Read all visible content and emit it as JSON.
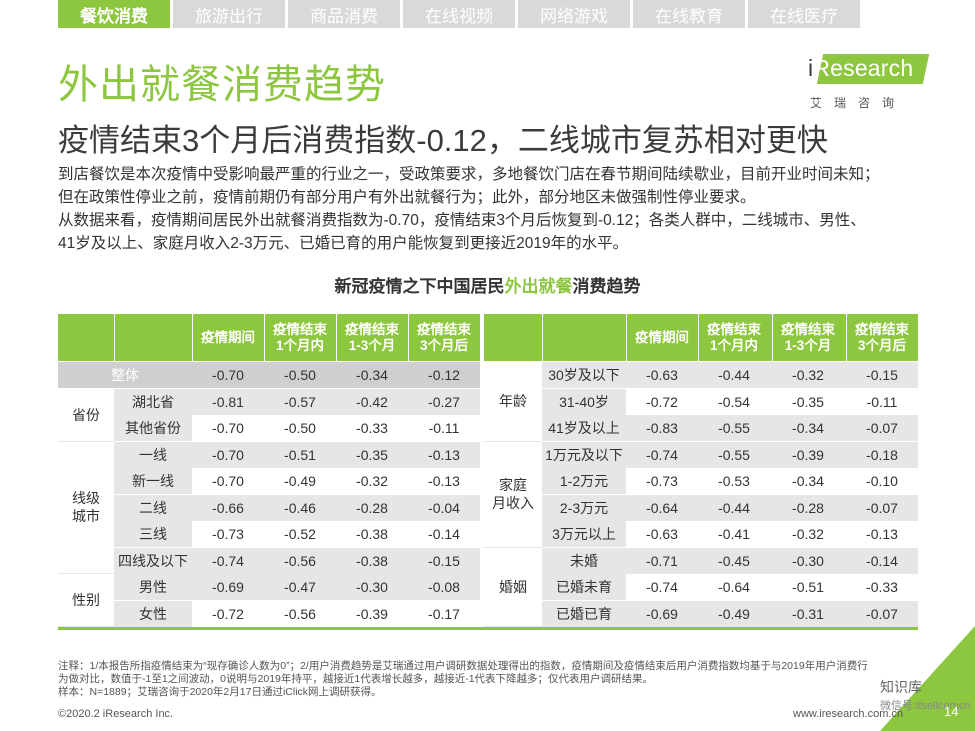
{
  "tabs": [
    "餐饮消费",
    "旅游出行",
    "商品消费",
    "在线视频",
    "网络游戏",
    "在线教育",
    "在线医疗"
  ],
  "logo": {
    "brand_i": "i",
    "brand_rest": "Research",
    "sub": "艾瑞咨询"
  },
  "title": "外出就餐消费趋势",
  "subtitle": "疫情结束3个月后消费指数-0.12，二线城市复苏相对更快",
  "paragraphs": [
    "到店餐饮是本次疫情中受影响最严重的行业之一，受政策要求，多地餐饮门店在春节期间陆续歇业，目前开业时间未知；",
    "但在政策性停业之前，疫情前期仍有部分用户有外出就餐行为；此外，部分地区未做强制性停业要求。",
    "从数据来看，疫情期间居民外出就餐消费指数为-0.70，疫情结束3个月后恢复到-0.12；各类人群中，二线城市、男性、",
    "41岁及以上、家庭月收入2-3万元、已婚已育的用户能恢复到更接近2019年的水平。"
  ],
  "table_title": {
    "pre": "新冠疫情之下中国居民",
    "highlight": "外出就餐",
    "post": "消费趋势"
  },
  "headers": [
    "疫情期间",
    "疫情结束\n1个月内",
    "疫情结束\n1-3个月",
    "疫情结束\n3个月后"
  ],
  "left": {
    "overall": {
      "label": "整体",
      "values": [
        "-0.70",
        "-0.50",
        "-0.34",
        "-0.12"
      ]
    },
    "groups": [
      {
        "name": "省份",
        "rows": [
          {
            "label": "湖北省",
            "values": [
              "-0.81",
              "-0.57",
              "-0.42",
              "-0.27"
            ]
          },
          {
            "label": "其他省份",
            "values": [
              "-0.70",
              "-0.50",
              "-0.33",
              "-0.11"
            ]
          }
        ]
      },
      {
        "name": "线级\n城市",
        "rows": [
          {
            "label": "一线",
            "values": [
              "-0.70",
              "-0.51",
              "-0.35",
              "-0.13"
            ]
          },
          {
            "label": "新一线",
            "values": [
              "-0.70",
              "-0.49",
              "-0.32",
              "-0.13"
            ]
          },
          {
            "label": "二线",
            "values": [
              "-0.66",
              "-0.46",
              "-0.28",
              "-0.04"
            ]
          },
          {
            "label": "三线",
            "values": [
              "-0.73",
              "-0.52",
              "-0.38",
              "-0.14"
            ]
          },
          {
            "label": "四线及以下",
            "values": [
              "-0.74",
              "-0.56",
              "-0.38",
              "-0.15"
            ]
          }
        ]
      },
      {
        "name": "性别",
        "rows": [
          {
            "label": "男性",
            "values": [
              "-0.69",
              "-0.47",
              "-0.30",
              "-0.08"
            ]
          },
          {
            "label": "女性",
            "values": [
              "-0.72",
              "-0.56",
              "-0.39",
              "-0.17"
            ]
          }
        ]
      }
    ]
  },
  "right": {
    "groups": [
      {
        "name": "年龄",
        "rows": [
          {
            "label": "30岁及以下",
            "values": [
              "-0.63",
              "-0.44",
              "-0.32",
              "-0.15"
            ]
          },
          {
            "label": "31-40岁",
            "values": [
              "-0.72",
              "-0.54",
              "-0.35",
              "-0.11"
            ]
          },
          {
            "label": "41岁及以上",
            "values": [
              "-0.83",
              "-0.55",
              "-0.34",
              "-0.07"
            ]
          }
        ]
      },
      {
        "name": "家庭\n月收入",
        "rows": [
          {
            "label": "1万元及以下",
            "values": [
              "-0.74",
              "-0.55",
              "-0.39",
              "-0.18"
            ]
          },
          {
            "label": "1-2万元",
            "values": [
              "-0.73",
              "-0.53",
              "-0.34",
              "-0.10"
            ]
          },
          {
            "label": "2-3万元",
            "values": [
              "-0.64",
              "-0.44",
              "-0.28",
              "-0.07"
            ]
          },
          {
            "label": "3万元以上",
            "values": [
              "-0.63",
              "-0.41",
              "-0.32",
              "-0.13"
            ]
          }
        ]
      },
      {
        "name": "婚姻",
        "rows": [
          {
            "label": "未婚",
            "values": [
              "-0.71",
              "-0.45",
              "-0.30",
              "-0.14"
            ]
          },
          {
            "label": "已婚未育",
            "values": [
              "-0.74",
              "-0.64",
              "-0.51",
              "-0.33"
            ]
          },
          {
            "label": "已婚已育",
            "values": [
              "-0.69",
              "-0.49",
              "-0.31",
              "-0.07"
            ]
          }
        ]
      }
    ]
  },
  "notes": [
    "注释：1/本报告所指疫情结束为“现存确诊人数为0”；2/用户消费趋势是艾瑞通过用户调研数据处理得出的指数，疫情期间及疫情结束后用户消费指数均基于与2019年用户消费行",
    "为做对比，数值于-1至1之间波动，0说明与2019年持平，越接近1代表增长越多，越接近-1代表下降越多；仅代表用户调研结果。",
    "样本：N=1889；艾瑞咨询于2020年2月17日通过iClick网上调研获得。"
  ],
  "footer_left": "©2020.2 iResearch Inc.",
  "footer_right": "www.iresearch.com.cn",
  "watermark": {
    "line1": "知识库",
    "line2": "微信号:itsellcomcn"
  },
  "page_number": "14",
  "colors": {
    "accent": "#8dc63f",
    "tab_inactive": "#d9d9d9",
    "row_gray": "#e6e6e6",
    "row_dark": "#cfcfcf"
  }
}
